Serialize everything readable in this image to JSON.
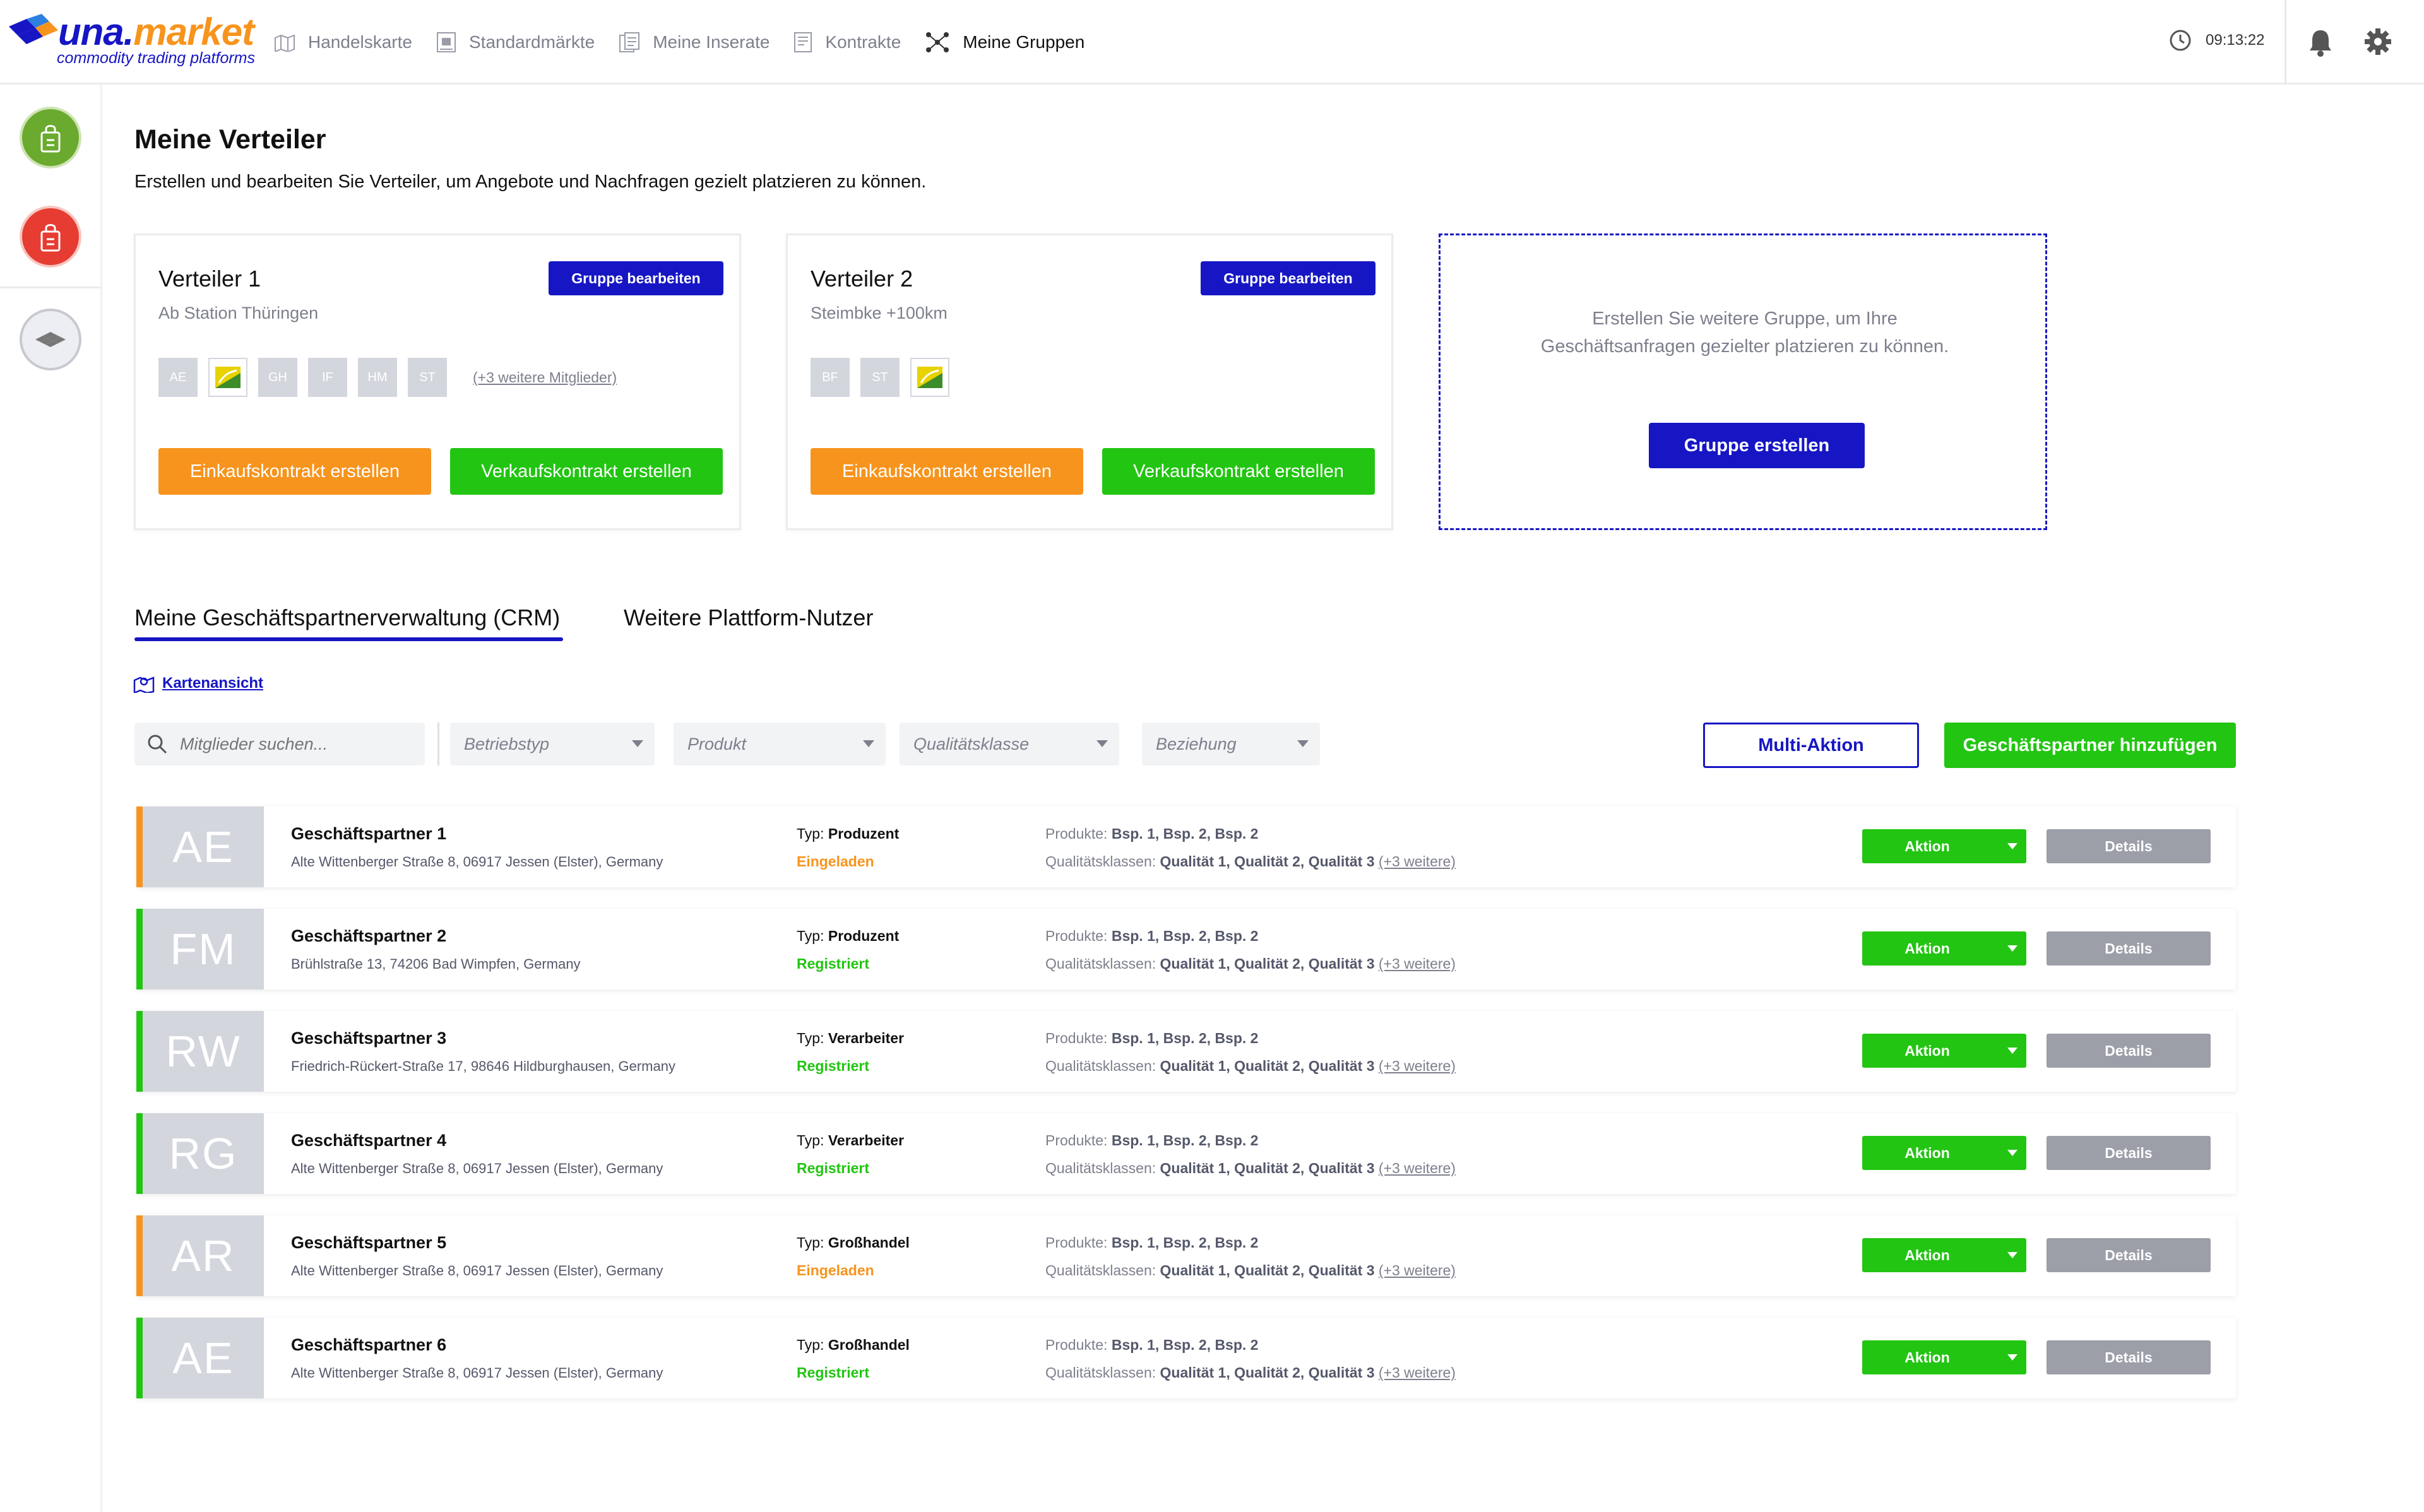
{
  "brand": {
    "name_a": "una",
    "name_b": ".",
    "name_c": "market",
    "tagline": "commodity trading platforms"
  },
  "nav": [
    {
      "label": "Handelskarte",
      "icon": "map-icon"
    },
    {
      "label": "Standardmärkte",
      "icon": "market-icon"
    },
    {
      "label": "Meine Inserate",
      "icon": "listings-icon"
    },
    {
      "label": "Kontrakte",
      "icon": "contracts-icon"
    },
    {
      "label": "Meine Gruppen",
      "icon": "groups-icon",
      "active": true
    }
  ],
  "header": {
    "time": "09:13:22"
  },
  "page": {
    "title": "Meine Verteiler",
    "subtitle": "Erstellen und bearbeiten Sie Verteiler, um Angebote und Nachfragen gezielt platzieren zu können."
  },
  "groups": [
    {
      "title": "Verteiler 1",
      "subtitle": "Ab Station Thüringen",
      "edit_label": "Gruppe bearbeiten",
      "members": [
        "AE",
        "logo",
        "GH",
        "IF",
        "HM",
        "ST"
      ],
      "more_members": "(+3 weitere Mitglieder)",
      "buy_label": "Einkaufskontrakt erstellen",
      "sell_label": "Verkaufskontrakt erstellen"
    },
    {
      "title": "Verteiler 2",
      "subtitle": "Steimbke +100km",
      "edit_label": "Gruppe bearbeiten",
      "members": [
        "BF",
        "ST",
        "logo"
      ],
      "buy_label": "Einkaufskontrakt erstellen",
      "sell_label": "Verkaufskontrakt erstellen"
    }
  ],
  "new_group": {
    "text": "Erstellen Sie weitere Gruppe, um Ihre Geschäftsanfragen gezielter platzieren zu können.",
    "button": "Gruppe erstellen"
  },
  "tabs": [
    {
      "label": "Meine Geschäftspartnerverwaltung (CRM)",
      "active": true
    },
    {
      "label": "Weitere Plattform-Nutzer"
    }
  ],
  "map_view_label": "Kartenansicht",
  "filters": {
    "search_placeholder": "Mitglieder suchen...",
    "betriebstyp": "Betriebstyp",
    "produkt": "Produkt",
    "qualitaetsklasse": "Qualitätsklasse",
    "beziehung": "Beziehung"
  },
  "actions": {
    "multi": "Multi-Aktion",
    "add": "Geschäftspartner hinzufügen"
  },
  "row_labels": {
    "type_prefix": "Typ:",
    "products_prefix": "Produkte:",
    "products_value": "Bsp. 1, Bsp. 2, Bsp. 2",
    "quality_prefix": "Qualitätsklassen:",
    "quality_value": "Qualität 1, Qualität 2, Qualität 3",
    "quality_more": "(+3 weitere)",
    "aktion": "Aktion",
    "details": "Details"
  },
  "colors": {
    "accent": "#1616c4",
    "orange": "#f7941d",
    "green": "#22c512"
  },
  "partners": [
    {
      "initials": "AE",
      "name": "Geschäftspartner 1",
      "address": "Alte Wittenberger Straße 8, 06917 Jessen (Elster), Germany",
      "type": "Produzent",
      "status": "Eingeladen",
      "status_color": "#f7941d"
    },
    {
      "initials": "FM",
      "name": "Geschäftspartner 2",
      "address": "Brühlstraße 13, 74206 Bad Wimpfen, Germany",
      "type": "Produzent",
      "status": "Registriert",
      "status_color": "#22c512"
    },
    {
      "initials": "RW",
      "name": "Geschäftspartner 3",
      "address": "Friedrich-Rückert-Straße 17, 98646 Hildburghausen, Germany",
      "type": "Verarbeiter",
      "status": "Registriert",
      "status_color": "#22c512"
    },
    {
      "initials": "RG",
      "name": "Geschäftspartner 4",
      "address": "Alte Wittenberger Straße 8, 06917 Jessen (Elster), Germany",
      "type": "Verarbeiter",
      "status": "Registriert",
      "status_color": "#22c512"
    },
    {
      "initials": "AR",
      "name": "Geschäftspartner 5",
      "address": "Alte Wittenberger Straße 8, 06917 Jessen (Elster), Germany",
      "type": "Großhandel",
      "status": "Eingeladen",
      "status_color": "#f7941d"
    },
    {
      "initials": "AE",
      "name": "Geschäftspartner 6",
      "address": "Alte Wittenberger Straße 8, 06917 Jessen (Elster), Germany",
      "type": "Großhandel",
      "status": "Registriert",
      "status_color": "#22c512"
    }
  ]
}
